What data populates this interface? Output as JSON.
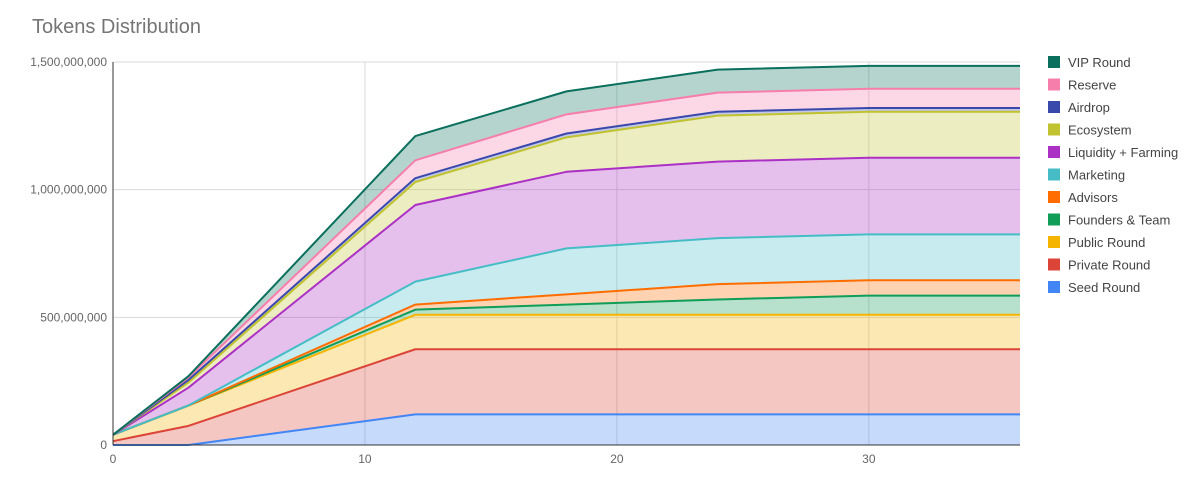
{
  "chart_data": {
    "type": "area",
    "stacked": true,
    "title": "Tokens Distribution",
    "xlabel": "",
    "ylabel": "",
    "x": [
      0,
      3,
      12,
      18,
      24,
      30,
      36
    ],
    "xlim": [
      0,
      36
    ],
    "ylim": [
      0,
      1500000000
    ],
    "x_ticks": [
      0,
      10,
      20,
      30
    ],
    "x_tick_labels": [
      "0",
      "10",
      "20",
      "30"
    ],
    "y_ticks": [
      0,
      500000000,
      1000000000,
      1500000000
    ],
    "y_tick_labels": [
      "0",
      "500,000,000",
      "1,000,000,000",
      "1,500,000,000"
    ],
    "grid": true,
    "legend_position": "right",
    "series": [
      {
        "name": "Seed Round",
        "color": "#4285F4",
        "values": [
          0,
          0,
          120000000,
          120000000,
          120000000,
          120000000,
          120000000
        ]
      },
      {
        "name": "Private Round",
        "color": "#DB4437",
        "values": [
          15000000,
          75000000,
          255000000,
          255000000,
          255000000,
          255000000,
          255000000
        ]
      },
      {
        "name": "Public Round",
        "color": "#F4B400",
        "values": [
          25000000,
          80000000,
          135000000,
          135000000,
          135000000,
          135000000,
          135000000
        ]
      },
      {
        "name": "Founders & Team",
        "color": "#0F9D58",
        "values": [
          0,
          0,
          20000000,
          40000000,
          60000000,
          75000000,
          75000000
        ]
      },
      {
        "name": "Advisors",
        "color": "#FF6D00",
        "values": [
          0,
          0,
          20000000,
          40000000,
          60000000,
          60000000,
          60000000
        ]
      },
      {
        "name": "Marketing",
        "color": "#46BDC6",
        "values": [
          0,
          0,
          90000000,
          180000000,
          180000000,
          180000000,
          180000000
        ]
      },
      {
        "name": "Liquidity + Farming",
        "color": "#AB30C4",
        "values": [
          0,
          70000000,
          300000000,
          300000000,
          300000000,
          300000000,
          300000000
        ]
      },
      {
        "name": "Ecosystem",
        "color": "#C0C230",
        "values": [
          0,
          20000000,
          90000000,
          135000000,
          180000000,
          180000000,
          180000000
        ]
      },
      {
        "name": "Airdrop",
        "color": "#3949AB",
        "values": [
          0,
          10000000,
          15000000,
          15000000,
          15000000,
          15000000,
          15000000
        ]
      },
      {
        "name": "Reserve",
        "color": "#F57EAB",
        "values": [
          0,
          10000000,
          70000000,
          75000000,
          75000000,
          75000000,
          75000000
        ]
      },
      {
        "name": "VIP Round",
        "color": "#0A6F5C",
        "values": [
          0,
          5000000,
          95000000,
          90000000,
          90000000,
          90000000,
          90000000
        ]
      }
    ]
  }
}
